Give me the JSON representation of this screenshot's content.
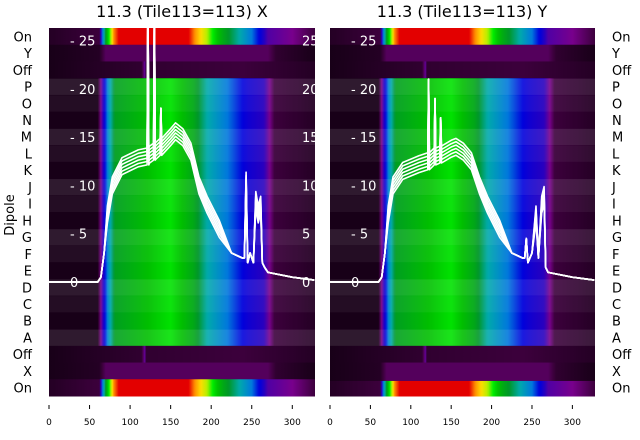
{
  "chart_data": [
    {
      "type": "heatmap",
      "title": "11.3 (Tile113=113) X",
      "ylabel": "Dipole",
      "row_labels": [
        "On",
        "Y",
        "Off",
        "P",
        "O",
        "N",
        "M",
        "L",
        "K",
        "J",
        "I",
        "H",
        "G",
        "F",
        "E",
        "D",
        "C",
        "B",
        "A",
        "Off",
        "X",
        "On"
      ],
      "row_kinds": [
        "bright",
        "dark",
        "off",
        "dipole",
        "dipole",
        "dipole",
        "dipole",
        "dipole",
        "dipole",
        "dipole",
        "dipole",
        "dipole",
        "dipole",
        "dipole",
        "dipole",
        "dipole",
        "dipole",
        "dipole",
        "dipole",
        "off",
        "dark",
        "bright"
      ],
      "x_ticks": [
        0,
        50,
        100,
        150,
        200,
        250,
        300
      ],
      "xlim": [
        0,
        328
      ],
      "overlay_y_ticks": [
        0,
        5,
        10,
        15,
        20,
        25
      ],
      "overlay_ylim": [
        -11.8,
        26.3
      ],
      "overlay_series": {
        "x": [
          0,
          60,
          64,
          68,
          72,
          78,
          90,
          110,
          121,
          122,
          123,
          124,
          129,
          130,
          131,
          132,
          137,
          138,
          139,
          150,
          156,
          165,
          175,
          185,
          195,
          210,
          225,
          238,
          241,
          243,
          245,
          248,
          252,
          255,
          258,
          261,
          263,
          266,
          270,
          300,
          327
        ],
        "y": [
          0,
          0,
          0.5,
          3,
          7,
          10,
          12,
          12.8,
          13,
          30,
          13,
          13.2,
          13.5,
          30,
          13.5,
          13.6,
          14,
          18,
          14,
          15,
          15.6,
          15,
          13.5,
          10,
          8,
          5.5,
          3,
          2.5,
          2.5,
          10.5,
          2,
          3,
          2,
          8.5,
          7,
          8,
          2,
          1.5,
          1,
          0.5,
          0.2
        ]
      }
    },
    {
      "type": "heatmap",
      "title": "11.3 (Tile113=113) Y",
      "row_labels": [
        "On",
        "Y",
        "Off",
        "P",
        "O",
        "N",
        "M",
        "L",
        "K",
        "J",
        "I",
        "H",
        "G",
        "F",
        "E",
        "D",
        "C",
        "B",
        "A",
        "Off",
        "X",
        "On"
      ],
      "row_kinds": [
        "bright",
        "dark",
        "off",
        "dipole",
        "dipole",
        "dipole",
        "dipole",
        "dipole",
        "dipole",
        "dipole",
        "dipole",
        "dipole",
        "dipole",
        "dipole",
        "dipole",
        "dipole",
        "dipole",
        "dipole",
        "dipole",
        "off",
        "dark",
        "brighthalf"
      ],
      "x_ticks": [
        0,
        50,
        100,
        150,
        200,
        250,
        300
      ],
      "xlim": [
        0,
        328
      ],
      "overlay_y_ticks": [
        0,
        5,
        10,
        15,
        20,
        25
      ],
      "overlay_ylim": [
        -11.8,
        26.3
      ],
      "overlay_series": {
        "x": [
          0,
          60,
          64,
          68,
          72,
          78,
          90,
          110,
          121,
          122,
          123,
          129,
          130,
          131,
          136,
          137,
          138,
          150,
          156,
          165,
          175,
          185,
          195,
          210,
          225,
          238,
          241,
          243,
          245,
          250,
          255,
          258,
          262,
          265,
          267,
          270,
          300,
          327
        ],
        "y": [
          0,
          0,
          0.5,
          3,
          7,
          10,
          11.5,
          12.2,
          12.5,
          21,
          12.5,
          13,
          19,
          13,
          13.2,
          17,
          13.2,
          13.8,
          14,
          13.5,
          12.5,
          10,
          8,
          5.5,
          3,
          2.5,
          2.5,
          4.5,
          2,
          3,
          7,
          2.5,
          8,
          9,
          1.5,
          1,
          0.5,
          0.2
        ]
      }
    }
  ],
  "profiles": {
    "bright": [
      [
        0,
        0.03
      ],
      [
        62,
        0.05
      ],
      [
        66,
        0.3
      ],
      [
        72,
        0.55
      ],
      [
        80,
        0.82
      ],
      [
        88,
        0.9
      ],
      [
        170,
        0.9
      ],
      [
        182,
        0.8
      ],
      [
        195,
        0.7
      ],
      [
        205,
        0.58
      ],
      [
        215,
        0.5
      ],
      [
        235,
        0.38
      ],
      [
        250,
        0.3
      ],
      [
        262,
        0.22
      ],
      [
        270,
        0.14
      ],
      [
        300,
        0.1
      ],
      [
        328,
        0.05
      ]
    ],
    "dipole": [
      [
        0,
        0.02
      ],
      [
        60,
        0.02
      ],
      [
        64,
        0.1
      ],
      [
        68,
        0.22
      ],
      [
        74,
        0.35
      ],
      [
        82,
        0.48
      ],
      [
        150,
        0.6
      ],
      [
        178,
        0.5
      ],
      [
        195,
        0.38
      ],
      [
        220,
        0.3
      ],
      [
        245,
        0.22
      ],
      [
        265,
        0.18
      ],
      [
        272,
        0.1
      ],
      [
        278,
        0.05
      ],
      [
        328,
        0.03
      ]
    ],
    "off": [
      [
        0,
        0.02
      ],
      [
        115,
        0.04
      ],
      [
        118,
        0.12
      ],
      [
        120,
        0.04
      ],
      [
        240,
        0.05
      ],
      [
        328,
        0.03
      ]
    ],
    "dark": [
      [
        0,
        0.02
      ],
      [
        62,
        0.03
      ],
      [
        70,
        0.07
      ],
      [
        270,
        0.07
      ],
      [
        280,
        0.04
      ],
      [
        328,
        0.02
      ]
    ]
  },
  "colors": {
    "curve": "#ffffff",
    "text": "#000000",
    "overlay_text": "#ffffff"
  }
}
